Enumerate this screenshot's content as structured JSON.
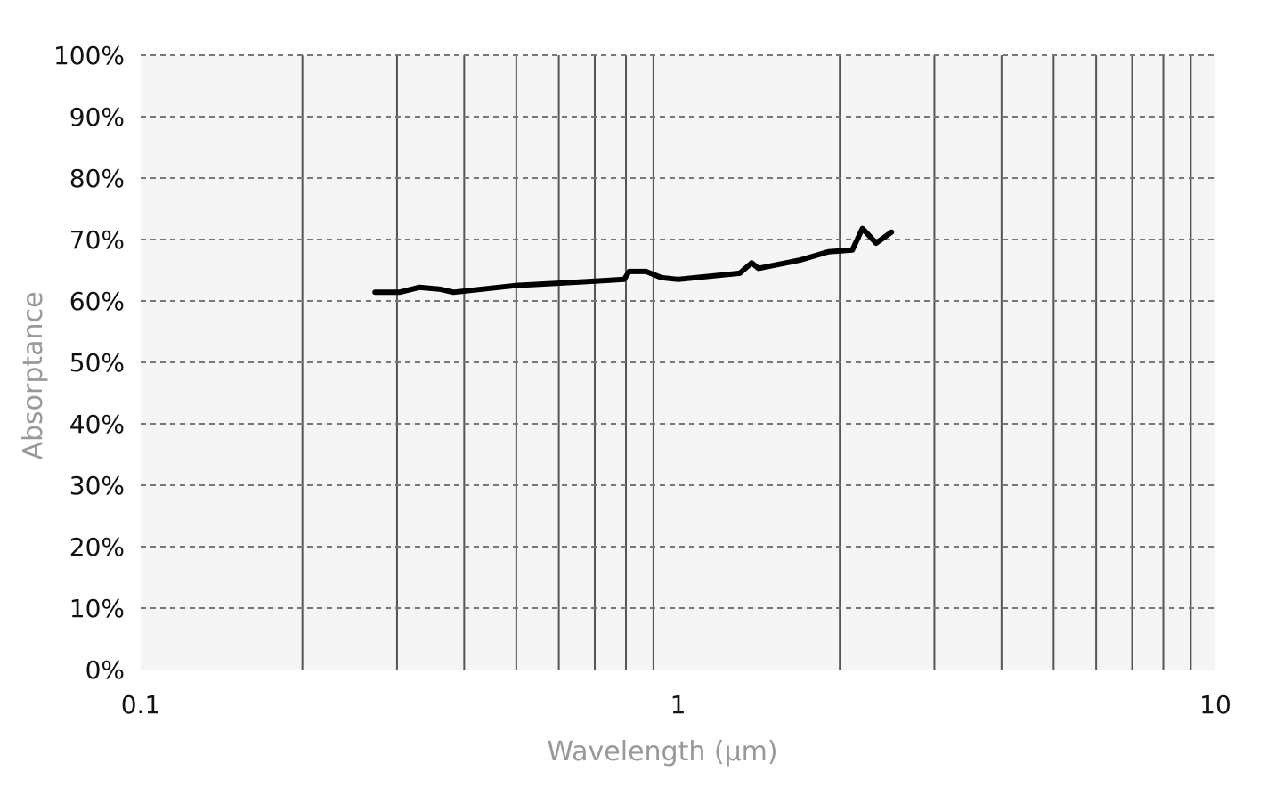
{
  "chart_data": {
    "type": "line",
    "title": "",
    "xlabel": "Wavelength (µm)",
    "ylabel": "Absorptance",
    "x_scale": "log",
    "xlim": [
      0.1,
      10
    ],
    "ylim": [
      0,
      100
    ],
    "x_ticks": [
      "0.1",
      "1",
      "10"
    ],
    "x_tick_values": [
      0.1,
      1,
      10
    ],
    "y_ticks": [
      "0%",
      "10%",
      "20%",
      "30%",
      "40%",
      "50%",
      "60%",
      "70%",
      "80%",
      "90%",
      "100%"
    ],
    "y_tick_values": [
      0,
      10,
      20,
      30,
      40,
      50,
      60,
      70,
      80,
      90,
      100
    ],
    "grid": {
      "x": "solid, minor log lines",
      "y": "dashed"
    },
    "legend": "none",
    "colors": {
      "line": "#000000",
      "plot_bg": "#f5f5f5",
      "vgrid": "#555555",
      "hgrid": "#777777",
      "axis_label": "#999999"
    },
    "series": [
      {
        "x": [
          0.273,
          0.303,
          0.33,
          0.361,
          0.382,
          0.497,
          0.696,
          0.794,
          0.811,
          0.872,
          0.931,
          1.0,
          1.303,
          1.371,
          1.412,
          1.695,
          1.905,
          2.111,
          2.204,
          2.337,
          2.497
        ],
        "y": [
          61.4,
          61.4,
          62.2,
          61.9,
          61.4,
          62.5,
          63.2,
          63.5,
          64.8,
          64.8,
          63.8,
          63.5,
          64.5,
          66.2,
          65.3,
          66.7,
          68.0,
          68.3,
          71.8,
          69.4,
          71.2
        ]
      }
    ]
  }
}
